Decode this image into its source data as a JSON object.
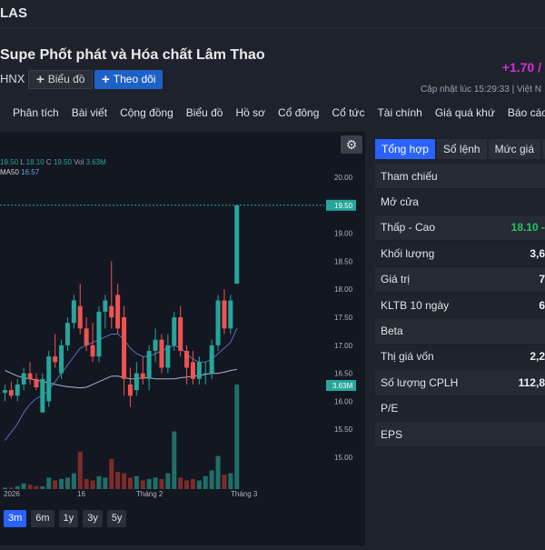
{
  "header": {
    "ticker": "LAS",
    "company": "Supe Phốt phát và Hóa chất Lâm Thao",
    "exchange": "HNX",
    "chart_button": "Biểu đồ",
    "follow_button": "Theo dõi",
    "change": "+1.70 /",
    "updated": "Cập nhật lúc  15:29:33 | Việt N"
  },
  "nav": [
    "Phân tích",
    "Bài viết",
    "Cộng đồng",
    "Biểu đồ",
    "Hồ sơ",
    "Cổ đông",
    "Cổ tức",
    "Tài chính",
    "Giá quá khứ",
    "Báo cáo"
  ],
  "chart_legend": {
    "ohlc_prefix": "19.50",
    "l_label": "L",
    "l_value": "18.10",
    "c_label": "C",
    "c_value": "19.50",
    "vol_label": "Vol",
    "vol_value": "3.63M",
    "ma_label": "MA50",
    "ma_value": "16.57"
  },
  "range_buttons": [
    "3m",
    "6m",
    "1y",
    "3y",
    "5y"
  ],
  "active_range": "3m",
  "tabs": [
    "Tổng hợp",
    "Sổ lệnh",
    "Mức giá",
    "Th"
  ],
  "active_tab": "Tổng hợp",
  "stats": [
    {
      "label": "Tham chiếu",
      "value": ""
    },
    {
      "label": "Mở cửa",
      "value": ""
    },
    {
      "label": "Thấp - Cao",
      "value": "18.10 -"
    },
    {
      "label": "Khối lượng",
      "value": "3,6"
    },
    {
      "label": "Giá trị",
      "value": "7"
    },
    {
      "label": "KLTB 10 ngày",
      "value": "6"
    },
    {
      "label": "Beta",
      "value": ""
    },
    {
      "label": "Thị giá vốn",
      "value": "2,2"
    },
    {
      "label": "Số lượng CPLH",
      "value": "112,8"
    },
    {
      "label": "P/E",
      "value": ""
    },
    {
      "label": "EPS",
      "value": ""
    }
  ],
  "colors": {
    "up": "#26a69a",
    "down": "#ef5350",
    "price_tag": "#26a69a",
    "ma": "#5b8fc9",
    "accent": "#2962ff"
  },
  "chart_data": {
    "type": "candlestick",
    "y_ticks": [
      20.0,
      19.5,
      19.0,
      18.5,
      18.0,
      17.5,
      17.0,
      16.5,
      16.0,
      15.5,
      15.0
    ],
    "y_tick_labels": [
      "20.00",
      "19.50",
      "19.00",
      "18.50",
      "18.00",
      "17.50",
      "17.00",
      "16.50",
      "16.00",
      "15.50",
      "15.00"
    ],
    "ylim": [
      14.6,
      20.4
    ],
    "x_labels": [
      "2026",
      "16",
      "Tháng 2",
      "Tháng 3"
    ],
    "last_price": "19.50",
    "volume_tag": "3.63M",
    "candles": [
      {
        "o": 16.15,
        "h": 16.3,
        "l": 16.0,
        "c": 16.2
      },
      {
        "o": 16.2,
        "h": 16.35,
        "l": 16.05,
        "c": 16.1
      },
      {
        "o": 16.1,
        "h": 16.4,
        "l": 16.0,
        "c": 16.3
      },
      {
        "o": 16.3,
        "h": 16.6,
        "l": 16.2,
        "c": 16.5
      },
      {
        "o": 16.5,
        "h": 16.7,
        "l": 16.3,
        "c": 16.4
      },
      {
        "o": 16.4,
        "h": 16.5,
        "l": 16.2,
        "c": 16.25
      },
      {
        "o": 15.8,
        "h": 16.5,
        "l": 15.8,
        "c": 16.4
      },
      {
        "o": 16.0,
        "h": 16.9,
        "l": 15.9,
        "c": 16.8
      },
      {
        "o": 16.8,
        "h": 17.2,
        "l": 16.6,
        "c": 16.7
      },
      {
        "o": 16.5,
        "h": 17.1,
        "l": 16.4,
        "c": 17.0
      },
      {
        "o": 17.0,
        "h": 17.5,
        "l": 16.9,
        "c": 17.4
      },
      {
        "o": 17.4,
        "h": 17.9,
        "l": 17.3,
        "c": 17.8
      },
      {
        "o": 17.7,
        "h": 18.1,
        "l": 17.2,
        "c": 17.3
      },
      {
        "o": 17.3,
        "h": 17.5,
        "l": 16.9,
        "c": 17.0
      },
      {
        "o": 17.0,
        "h": 17.4,
        "l": 16.7,
        "c": 16.8
      },
      {
        "o": 16.8,
        "h": 17.7,
        "l": 16.7,
        "c": 17.6
      },
      {
        "o": 17.6,
        "h": 17.9,
        "l": 17.3,
        "c": 17.8
      },
      {
        "o": 17.7,
        "h": 18.5,
        "l": 17.3,
        "c": 17.5
      },
      {
        "o": 17.9,
        "h": 18.1,
        "l": 17.2,
        "c": 17.3
      },
      {
        "o": 17.5,
        "h": 17.7,
        "l": 16.1,
        "c": 16.4
      },
      {
        "o": 16.3,
        "h": 16.6,
        "l": 15.9,
        "c": 16.1
      },
      {
        "o": 16.2,
        "h": 16.7,
        "l": 16.1,
        "c": 16.5
      },
      {
        "o": 16.5,
        "h": 16.8,
        "l": 16.3,
        "c": 16.4
      },
      {
        "o": 16.4,
        "h": 17.0,
        "l": 16.2,
        "c": 16.9
      },
      {
        "o": 16.9,
        "h": 17.3,
        "l": 16.7,
        "c": 17.1
      },
      {
        "o": 17.1,
        "h": 17.2,
        "l": 16.5,
        "c": 16.6
      },
      {
        "o": 16.6,
        "h": 17.2,
        "l": 16.5,
        "c": 17.0
      },
      {
        "o": 17.0,
        "h": 17.6,
        "l": 16.9,
        "c": 17.5
      },
      {
        "o": 17.5,
        "h": 17.7,
        "l": 16.8,
        "c": 16.9
      },
      {
        "o": 16.9,
        "h": 17.0,
        "l": 16.3,
        "c": 16.6
      },
      {
        "o": 16.7,
        "h": 16.9,
        "l": 16.3,
        "c": 16.4
      },
      {
        "o": 16.4,
        "h": 16.8,
        "l": 16.3,
        "c": 16.7
      },
      {
        "o": 16.5,
        "h": 16.7,
        "l": 16.3,
        "c": 16.5
      },
      {
        "o": 16.5,
        "h": 17.1,
        "l": 16.4,
        "c": 17.0
      },
      {
        "o": 17.0,
        "h": 17.9,
        "l": 16.9,
        "c": 17.8
      },
      {
        "o": 17.8,
        "h": 18.0,
        "l": 17.2,
        "c": 17.3
      },
      {
        "o": 17.3,
        "h": 17.9,
        "l": 17.2,
        "c": 17.8
      },
      {
        "o": 18.1,
        "h": 19.5,
        "l": 18.1,
        "c": 19.5
      }
    ],
    "volumes": [
      0.05,
      0.05,
      0.1,
      0.2,
      0.15,
      0.1,
      0.1,
      0.4,
      0.3,
      0.35,
      0.4,
      0.55,
      1.3,
      0.35,
      0.3,
      0.45,
      0.4,
      1.05,
      0.6,
      0.55,
      0.4,
      0.45,
      0.3,
      0.35,
      0.4,
      0.35,
      0.55,
      2.0,
      0.4,
      0.3,
      0.35,
      0.3,
      0.45,
      0.65,
      1.15,
      0.5,
      0.55,
      3.63
    ],
    "ma50": [
      16.55,
      16.5,
      16.45,
      16.42,
      16.4,
      16.38,
      16.35,
      16.33,
      16.3,
      16.28,
      16.26,
      16.25,
      16.24,
      16.25,
      16.3,
      16.35,
      16.4,
      16.45,
      16.45,
      16.42,
      16.4,
      16.4,
      16.42,
      16.42,
      16.4,
      16.4,
      16.4,
      16.4,
      16.42,
      16.43,
      16.45,
      16.46,
      16.48,
      16.5,
      16.5,
      16.52,
      16.55,
      16.57
    ],
    "ma_short": [
      15.3,
      15.45,
      15.6,
      15.8,
      15.95,
      16.05,
      16.1,
      16.2,
      16.35,
      16.5,
      16.65,
      16.8,
      16.95,
      17.0,
      17.05,
      17.1,
      17.15,
      17.2,
      17.2,
      17.1,
      16.95,
      16.85,
      16.8,
      16.8,
      16.85,
      16.9,
      16.95,
      17.0,
      16.95,
      16.85,
      16.75,
      16.7,
      16.7,
      16.75,
      16.85,
      16.95,
      17.05,
      17.3
    ]
  }
}
